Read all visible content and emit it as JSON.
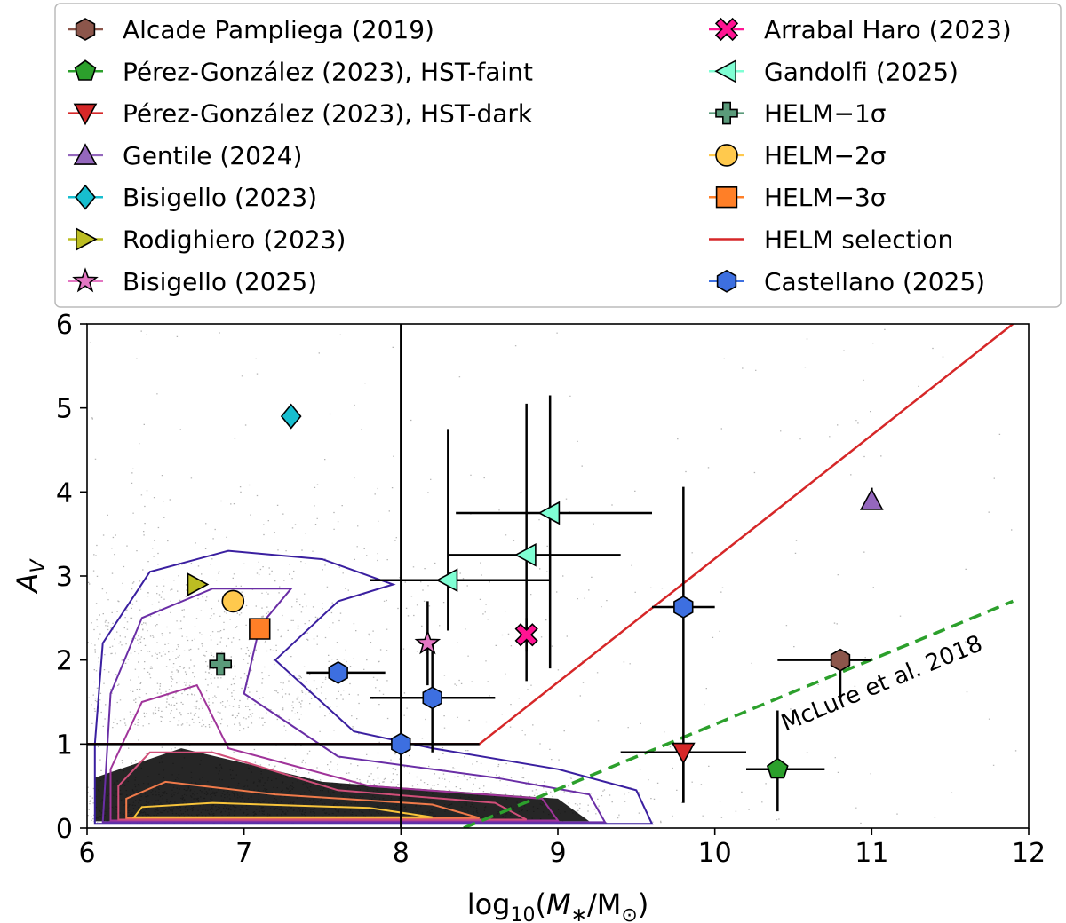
{
  "chart_data": {
    "type": "scatter",
    "title": "",
    "xlabel_parts": [
      "log",
      "10",
      "(",
      "M",
      "∗",
      "/M",
      "⊙",
      ")"
    ],
    "ylabel_parts": [
      "A",
      "V"
    ],
    "xlim": [
      6,
      12
    ],
    "ylim": [
      0,
      6
    ],
    "xticks": [
      6,
      7,
      8,
      9,
      10,
      11,
      12
    ],
    "yticks": [
      0,
      1,
      2,
      3,
      4,
      5,
      6
    ],
    "grid": false,
    "legend_position": "top",
    "background_population": {
      "style": "grey point cloud with density contours",
      "peak": [
        6.5,
        0.3
      ],
      "contour_colors": [
        "#3a1fa0",
        "#6a2ea6",
        "#a0349a",
        "#d04e78",
        "#f07a4a",
        "#f8c43a"
      ]
    },
    "series": [
      {
        "name": "Alcade Pampliega (2019)",
        "marker": "hexagon",
        "color": "#8c564b",
        "points": [
          {
            "x": 10.8,
            "y": 2.0,
            "xerr": [
              0.4,
              0.2
            ],
            "yerr": [
              0.45,
              0.0
            ]
          }
        ]
      },
      {
        "name": "Pérez-González (2023), HST-faint",
        "marker": "pentagon",
        "color": "#2ca02c",
        "points": [
          {
            "x": 10.4,
            "y": 0.7,
            "xerr": [
              0.2,
              0.3
            ],
            "yerr": [
              0.5,
              0.7
            ]
          }
        ]
      },
      {
        "name": "Pérez-González (2023), HST-dark",
        "marker": "triangle-down",
        "color": "#d62728",
        "points": [
          {
            "x": 9.8,
            "y": 0.9,
            "xerr": [
              0.4,
              0.4
            ],
            "yerr": [
              0.6,
              0.0
            ]
          }
        ]
      },
      {
        "name": "Gentile (2024)",
        "marker": "triangle-up",
        "color": "#9467bd",
        "points": [
          {
            "x": 11.0,
            "y": 3.9,
            "xerr": [
              0,
              0
            ],
            "yerr": [
              0.0,
              0.15
            ]
          }
        ]
      },
      {
        "name": "Bisigello (2023)",
        "marker": "diamond",
        "color": "#17becf",
        "points": [
          {
            "x": 7.3,
            "y": 4.9,
            "xerr": [
              0,
              0
            ],
            "yerr": [
              0,
              0
            ]
          }
        ]
      },
      {
        "name": "Rodighiero (2023)",
        "marker": "triangle-right",
        "color": "#bcbd22",
        "points": [
          {
            "x": 6.7,
            "y": 2.9,
            "xerr": [
              0,
              0
            ],
            "yerr": [
              0,
              0
            ]
          }
        ]
      },
      {
        "name": "Bisigello (2025)",
        "marker": "star",
        "color": "#e377c2",
        "points": [
          {
            "x": 8.17,
            "y": 2.2,
            "xerr": [
              0.05,
              0.05
            ],
            "yerr": [
              0.5,
              0.5
            ]
          }
        ]
      },
      {
        "name": "Arrabal Haro (2023)",
        "marker": "x-filled",
        "color": "#ff1493",
        "points": [
          {
            "x": 8.8,
            "y": 2.3,
            "xerr": [
              0.03,
              0.03
            ],
            "yerr": [
              0.2,
              0.2
            ]
          }
        ]
      },
      {
        "name": "Gandolfi (2025)",
        "marker": "triangle-left",
        "color": "#7fffd4",
        "points": [
          {
            "x": 8.95,
            "y": 3.75,
            "xerr": [
              0.6,
              0.65
            ],
            "yerr": [
              1.85,
              1.4
            ]
          },
          {
            "x": 8.8,
            "y": 3.25,
            "xerr": [
              0.5,
              0.6
            ],
            "yerr": [
              1.5,
              1.8
            ]
          },
          {
            "x": 8.3,
            "y": 2.95,
            "xerr": [
              0.5,
              0.65
            ],
            "yerr": [
              0.6,
              1.8
            ]
          }
        ]
      },
      {
        "name": "HELM−1σ",
        "marker": "plus-filled",
        "color": "#5a9a7a",
        "points": [
          {
            "x": 6.85,
            "y": 1.95,
            "xerr": [
              0,
              0
            ],
            "yerr": [
              0,
              0
            ]
          }
        ]
      },
      {
        "name": "HELM−2σ",
        "marker": "circle",
        "color": "#ffc94d",
        "points": [
          {
            "x": 6.93,
            "y": 2.7,
            "xerr": [
              0,
              0
            ],
            "yerr": [
              0,
              0
            ]
          }
        ]
      },
      {
        "name": "HELM−3σ",
        "marker": "square",
        "color": "#ff7f27",
        "points": [
          {
            "x": 7.1,
            "y": 2.37,
            "xerr": [
              0,
              0
            ],
            "yerr": [
              0,
              0
            ]
          }
        ]
      },
      {
        "name": "HELM selection",
        "marker": "line",
        "color": "#d62728",
        "line": [
          [
            6.0,
            1.0
          ],
          [
            8.5,
            1.0
          ],
          [
            11.9,
            6.0
          ]
        ]
      },
      {
        "name": "Castellano (2025)",
        "marker": "hexagon",
        "color": "#3d6fe0",
        "points": [
          {
            "x": 7.6,
            "y": 1.85,
            "xerr": [
              0.2,
              0.3
            ],
            "yerr": [
              0,
              0
            ]
          },
          {
            "x": 8.2,
            "y": 1.55,
            "xerr": [
              0.4,
              0.4
            ],
            "yerr": [
              0.65,
              0.65
            ]
          },
          {
            "x": 8.0,
            "y": 1.0,
            "xerr": [
              2.0,
              0.5
            ],
            "yerr": [
              1.0,
              5.0
            ]
          },
          {
            "x": 9.8,
            "y": 2.63,
            "xerr": [
              0.2,
              0.2
            ],
            "yerr": [
              2.33,
              1.43
            ]
          }
        ]
      }
    ],
    "annotations": [
      {
        "text": "McLure et al. 2018",
        "style": "dashed green line",
        "color": "#2ca02c",
        "line": [
          [
            8.4,
            0.0
          ],
          [
            11.9,
            2.7
          ]
        ]
      }
    ]
  }
}
